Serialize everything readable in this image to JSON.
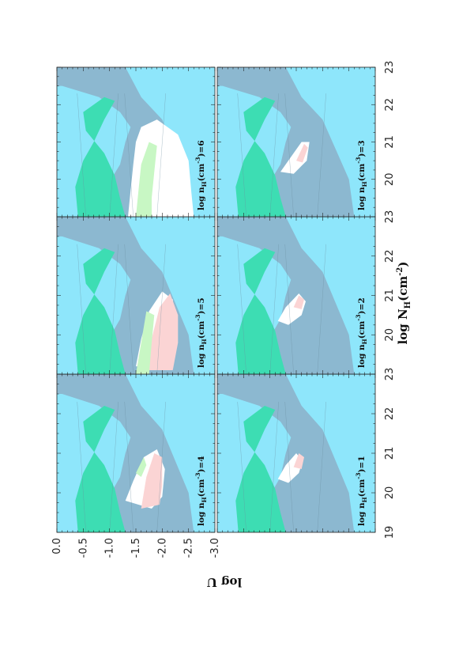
{
  "chart_data": {
    "type": "area",
    "layout": "2x3 panels, figure rotated 90 degrees counter-clockwise",
    "xlabel": "log  N",
    "xlabel_sub": "H",
    "xlabel_unit": "(cm",
    "xlabel_exp": "-2",
    "xlabel_close": ")",
    "ylabel": "log  U",
    "xlim": [
      19,
      23
    ],
    "ylim": [
      -3.0,
      0.0
    ],
    "x_ticks": [
      "19",
      "20",
      "21",
      "22",
      "23"
    ],
    "y_ticks": [
      "0.0",
      "-0.5",
      "-1.0",
      "-1.5",
      "-2.0",
      "-2.5",
      "-3.0"
    ],
    "colors": {
      "background": "#8ee6fb",
      "grey": "#8cb8d0",
      "green": "#3dddb3",
      "white": "#ffffff",
      "pink": "#fbd4d4",
      "lightgreen": "#c8f7c4",
      "contour": "#6a8c9e"
    },
    "panels": [
      {
        "label": "log  n",
        "sub": "H",
        "mid": "(cm",
        "exp": "-3",
        "close": ")=1",
        "grey": [
          [
            19,
            -0.6
          ],
          [
            19.7,
            -0.9
          ],
          [
            20.4,
            -1.2
          ],
          [
            21,
            -1.3
          ],
          [
            21.4,
            -1.4
          ],
          [
            21.8,
            -1.2
          ],
          [
            22.2,
            -0.8
          ],
          [
            22.5,
            -0.1
          ],
          [
            22.5,
            0
          ],
          [
            23,
            0
          ],
          [
            23,
            -1.3
          ],
          [
            22.2,
            -1.6
          ],
          [
            21.6,
            -2.0
          ],
          [
            20.8,
            -2.25
          ],
          [
            20,
            -2.5
          ],
          [
            19,
            -2.6
          ]
        ],
        "green": [
          [
            19,
            -0.4
          ],
          [
            19.8,
            -0.35
          ],
          [
            20.5,
            -0.5
          ],
          [
            21,
            -0.7
          ],
          [
            21.6,
            -0.9
          ],
          [
            22.1,
            -1.1
          ],
          [
            22.2,
            -0.9
          ],
          [
            21.8,
            -0.5
          ],
          [
            21.3,
            -0.55
          ],
          [
            20.7,
            -0.9
          ],
          [
            20.1,
            -1.1
          ],
          [
            19.5,
            -1.2
          ],
          [
            19,
            -1.3
          ]
        ],
        "white": [
          [
            20.35,
            -1.15
          ],
          [
            20.7,
            -1.3
          ],
          [
            21.0,
            -1.5
          ],
          [
            20.8,
            -1.62
          ],
          [
            20.5,
            -1.55
          ],
          [
            20.25,
            -1.35
          ]
        ],
        "pink": [
          [
            20.65,
            -1.45
          ],
          [
            21.0,
            -1.55
          ],
          [
            20.9,
            -1.65
          ],
          [
            20.6,
            -1.6
          ]
        ],
        "lightgreen": []
      },
      {
        "label": "log  n",
        "sub": "H",
        "mid": "(cm",
        "exp": "-3",
        "close": ")=2",
        "grey": [
          [
            19,
            -0.6
          ],
          [
            19.7,
            -0.9
          ],
          [
            20.4,
            -1.2
          ],
          [
            21,
            -1.3
          ],
          [
            21.4,
            -1.4
          ],
          [
            21.8,
            -1.2
          ],
          [
            22.2,
            -0.8
          ],
          [
            22.5,
            -0.1
          ],
          [
            22.5,
            0
          ],
          [
            23,
            0
          ],
          [
            23,
            -1.3
          ],
          [
            22.2,
            -1.6
          ],
          [
            21.6,
            -2.0
          ],
          [
            20.8,
            -2.25
          ],
          [
            20,
            -2.5
          ],
          [
            19,
            -2.6
          ]
        ],
        "green": [
          [
            19,
            -0.4
          ],
          [
            19.8,
            -0.35
          ],
          [
            20.5,
            -0.5
          ],
          [
            21,
            -0.7
          ],
          [
            21.6,
            -0.9
          ],
          [
            22.1,
            -1.1
          ],
          [
            22.2,
            -0.9
          ],
          [
            21.8,
            -0.5
          ],
          [
            21.3,
            -0.55
          ],
          [
            20.7,
            -0.9
          ],
          [
            20.1,
            -1.1
          ],
          [
            19.5,
            -1.2
          ],
          [
            19,
            -1.3
          ]
        ],
        "white": [
          [
            20.35,
            -1.15
          ],
          [
            20.7,
            -1.3
          ],
          [
            21.05,
            -1.55
          ],
          [
            20.85,
            -1.68
          ],
          [
            20.5,
            -1.6
          ],
          [
            20.25,
            -1.35
          ]
        ],
        "pink": [
          [
            20.7,
            -1.45
          ],
          [
            21.0,
            -1.55
          ],
          [
            20.9,
            -1.65
          ],
          [
            20.65,
            -1.6
          ]
        ],
        "lightgreen": []
      },
      {
        "label": "log  n",
        "sub": "H",
        "mid": "(cm",
        "exp": "-3",
        "close": ")=3",
        "grey": [
          [
            19,
            -0.6
          ],
          [
            19.7,
            -0.9
          ],
          [
            20.4,
            -1.2
          ],
          [
            21,
            -1.3
          ],
          [
            21.4,
            -1.4
          ],
          [
            21.8,
            -1.2
          ],
          [
            22.2,
            -0.8
          ],
          [
            22.5,
            -0.1
          ],
          [
            22.5,
            0
          ],
          [
            23,
            0
          ],
          [
            23,
            -1.3
          ],
          [
            22.2,
            -1.6
          ],
          [
            21.6,
            -2.0
          ],
          [
            20.8,
            -2.25
          ],
          [
            20,
            -2.5
          ],
          [
            19,
            -2.6
          ]
        ],
        "green": [
          [
            19,
            -0.4
          ],
          [
            19.8,
            -0.35
          ],
          [
            20.5,
            -0.5
          ],
          [
            21,
            -0.7
          ],
          [
            21.6,
            -0.9
          ],
          [
            22.1,
            -1.1
          ],
          [
            22.2,
            -0.9
          ],
          [
            21.8,
            -0.5
          ],
          [
            21.3,
            -0.55
          ],
          [
            20.7,
            -0.9
          ],
          [
            20.1,
            -1.1
          ],
          [
            19.5,
            -1.2
          ],
          [
            19,
            -1.3
          ]
        ],
        "white": [
          [
            20.2,
            -1.2
          ],
          [
            20.6,
            -1.4
          ],
          [
            21.0,
            -1.6
          ],
          [
            21.0,
            -1.75
          ],
          [
            20.5,
            -1.7
          ],
          [
            20.15,
            -1.45
          ]
        ],
        "pink": [
          [
            20.5,
            -1.5
          ],
          [
            20.95,
            -1.65
          ],
          [
            20.85,
            -1.72
          ],
          [
            20.45,
            -1.62
          ]
        ],
        "lightgreen": []
      },
      {
        "label": "log  n",
        "sub": "H",
        "mid": "(cm",
        "exp": "-3",
        "close": ")=4",
        "grey": [
          [
            19,
            -0.6
          ],
          [
            19.7,
            -0.9
          ],
          [
            20.4,
            -1.2
          ],
          [
            21,
            -1.3
          ],
          [
            21.4,
            -1.4
          ],
          [
            21.8,
            -1.2
          ],
          [
            22.2,
            -0.8
          ],
          [
            22.5,
            -0.1
          ],
          [
            22.5,
            0
          ],
          [
            23,
            0
          ],
          [
            23,
            -1.3
          ],
          [
            22.2,
            -1.6
          ],
          [
            21.6,
            -2.0
          ],
          [
            20.8,
            -2.25
          ],
          [
            20,
            -2.5
          ],
          [
            19,
            -2.6
          ]
        ],
        "green": [
          [
            19,
            -0.4
          ],
          [
            19.8,
            -0.35
          ],
          [
            20.5,
            -0.5
          ],
          [
            21,
            -0.7
          ],
          [
            21.6,
            -0.9
          ],
          [
            22.1,
            -1.1
          ],
          [
            22.2,
            -0.9
          ],
          [
            21.8,
            -0.5
          ],
          [
            21.3,
            -0.55
          ],
          [
            20.7,
            -0.9
          ],
          [
            20.1,
            -1.1
          ],
          [
            19.5,
            -1.2
          ],
          [
            19,
            -1.3
          ]
        ],
        "white": [
          [
            19.8,
            -1.3
          ],
          [
            20.3,
            -1.45
          ],
          [
            20.9,
            -1.65
          ],
          [
            21.1,
            -1.9
          ],
          [
            20.6,
            -2.05
          ],
          [
            19.9,
            -2.0
          ],
          [
            19.6,
            -1.8
          ]
        ],
        "pink": [
          [
            19.6,
            -1.6
          ],
          [
            20.4,
            -1.7
          ],
          [
            21.0,
            -1.85
          ],
          [
            20.9,
            -2.0
          ],
          [
            20.2,
            -2.0
          ],
          [
            19.7,
            -1.95
          ]
        ],
        "lightgreen": [
          [
            20.5,
            -1.5
          ],
          [
            20.9,
            -1.65
          ],
          [
            20.7,
            -1.7
          ],
          [
            20.4,
            -1.6
          ]
        ]
      },
      {
        "label": "log  n",
        "sub": "H",
        "mid": "(cm",
        "exp": "-3",
        "close": ")=5",
        "grey": [
          [
            19,
            -0.6
          ],
          [
            19.7,
            -0.9
          ],
          [
            20.4,
            -1.2
          ],
          [
            21,
            -1.3
          ],
          [
            21.4,
            -1.4
          ],
          [
            21.8,
            -1.2
          ],
          [
            22.2,
            -0.8
          ],
          [
            22.5,
            -0.1
          ],
          [
            22.5,
            0
          ],
          [
            23,
            0
          ],
          [
            23,
            -1.3
          ],
          [
            22.2,
            -1.6
          ],
          [
            21.6,
            -2.0
          ],
          [
            20.8,
            -2.25
          ],
          [
            20,
            -2.5
          ],
          [
            19,
            -2.6
          ]
        ],
        "green": [
          [
            19,
            -0.4
          ],
          [
            19.8,
            -0.35
          ],
          [
            20.5,
            -0.5
          ],
          [
            21,
            -0.7
          ],
          [
            21.6,
            -0.9
          ],
          [
            22.1,
            -1.1
          ],
          [
            22.2,
            -0.9
          ],
          [
            21.8,
            -0.5
          ],
          [
            21.3,
            -0.55
          ],
          [
            20.7,
            -0.9
          ],
          [
            20.1,
            -1.1
          ],
          [
            19.5,
            -1.2
          ],
          [
            19,
            -1.3
          ]
        ],
        "white": [
          [
            19.2,
            -1.5
          ],
          [
            19.9,
            -1.6
          ],
          [
            20.6,
            -1.75
          ],
          [
            21.1,
            -2.0
          ],
          [
            20.9,
            -2.2
          ],
          [
            20.3,
            -2.25
          ],
          [
            19.6,
            -2.1
          ],
          [
            19.2,
            -2.0
          ]
        ],
        "pink": [
          [
            19.1,
            -1.7
          ],
          [
            19.9,
            -1.8
          ],
          [
            20.7,
            -1.95
          ],
          [
            21.05,
            -2.15
          ],
          [
            20.5,
            -2.3
          ],
          [
            19.8,
            -2.3
          ],
          [
            19.1,
            -2.2
          ]
        ],
        "lightgreen": [
          [
            19.0,
            -1.5
          ],
          [
            19.8,
            -1.6
          ],
          [
            20.6,
            -1.7
          ],
          [
            20.5,
            -1.85
          ],
          [
            19.8,
            -1.8
          ],
          [
            19.0,
            -1.75
          ]
        ]
      },
      {
        "label": "log  n",
        "sub": "H",
        "mid": "(cm",
        "exp": "-3",
        "close": ")=6",
        "grey": [
          [
            19,
            -0.6
          ],
          [
            19.7,
            -0.9
          ],
          [
            20.4,
            -1.2
          ],
          [
            21,
            -1.3
          ],
          [
            21.4,
            -1.4
          ],
          [
            21.8,
            -1.2
          ],
          [
            22.2,
            -0.8
          ],
          [
            22.5,
            -0.1
          ],
          [
            22.5,
            0
          ],
          [
            23,
            0
          ],
          [
            23,
            -1.3
          ],
          [
            22.2,
            -1.6
          ],
          [
            21.6,
            -2.0
          ],
          [
            20.8,
            -2.25
          ],
          [
            20,
            -2.5
          ],
          [
            19,
            -2.6
          ]
        ],
        "green": [
          [
            19,
            -0.4
          ],
          [
            19.8,
            -0.35
          ],
          [
            20.5,
            -0.5
          ],
          [
            21,
            -0.7
          ],
          [
            21.6,
            -0.9
          ],
          [
            22.1,
            -1.1
          ],
          [
            22.2,
            -0.9
          ],
          [
            21.8,
            -0.5
          ],
          [
            21.3,
            -0.55
          ],
          [
            20.7,
            -0.9
          ],
          [
            20.1,
            -1.1
          ],
          [
            19.5,
            -1.2
          ],
          [
            19,
            -1.3
          ]
        ],
        "white": [
          [
            19,
            -1.35
          ],
          [
            19.7,
            -1.4
          ],
          [
            20.4,
            -1.45
          ],
          [
            21.0,
            -1.5
          ],
          [
            21.4,
            -1.6
          ],
          [
            21.6,
            -1.9
          ],
          [
            21.2,
            -2.3
          ],
          [
            20.5,
            -2.5
          ],
          [
            19.7,
            -2.55
          ],
          [
            19,
            -2.6
          ]
        ],
        "pink": [],
        "lightgreen": [
          [
            19,
            -1.5
          ],
          [
            19.7,
            -1.55
          ],
          [
            20.4,
            -1.6
          ],
          [
            21.0,
            -1.75
          ],
          [
            20.9,
            -1.9
          ],
          [
            20.2,
            -1.85
          ],
          [
            19.5,
            -1.8
          ],
          [
            19,
            -1.8
          ]
        ]
      }
    ]
  }
}
